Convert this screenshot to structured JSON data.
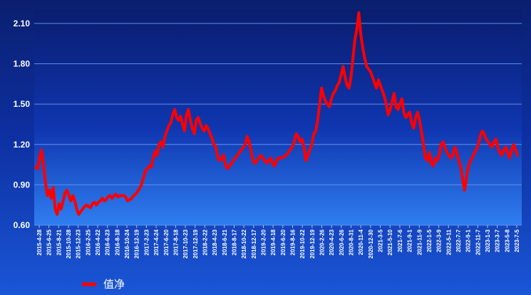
{
  "chart_data": {
    "type": "line",
    "title": "",
    "xlabel": "",
    "ylabel": "",
    "ylim": [
      0.6,
      2.2
    ],
    "yticks": [
      0.6,
      0.9,
      1.2,
      1.5,
      1.8,
      2.1
    ],
    "ytick_labels": [
      "0.60",
      "0.90",
      "1.20",
      "1.50",
      "1.80",
      "2.10"
    ],
    "grid": true,
    "legend_position": "bottom-left",
    "xtick_labels": [
      "2015-4-28",
      "2015-6-25",
      "2015-8-21",
      "2015-10-28",
      "2015-12-23",
      "2016-2-25",
      "2016-4-22",
      "2016-6-23",
      "2016-8-18",
      "2016-10-24",
      "2016-12-19",
      "2017-2-23",
      "2017-4-24",
      "2017-6-20",
      "2017-8-18",
      "2017-10-23",
      "2017-12-19",
      "2018-2-22",
      "2018-4-23",
      "2018-6-21",
      "2018-8-17",
      "2018-10-22",
      "2018-12-17",
      "2019-2-20",
      "2019-4-18",
      "2019-6-20",
      "2019-8-16",
      "2019-10-22",
      "2019-12-19",
      "2020-2-26",
      "2020-4-23",
      "2020-6-26",
      "2020-8-31",
      "2020-11-4",
      "2020-12-30",
      "2021-3-5",
      "2021-5-10",
      "2021-7-6",
      "2021-9-1",
      "2021-11-9",
      "2022-1-5",
      "2022-3-9",
      "2022-5-11",
      "2022-7-7",
      "2022-9-1",
      "2022-11-7",
      "2023-1-3",
      "2023-3-7",
      "2023-5-8",
      "2023-7-5"
    ],
    "series": [
      {
        "name": "值净",
        "color": "#ff0000",
        "values": [
          1.03,
          1.02,
          1.1,
          1.16,
          1.05,
          0.92,
          0.82,
          0.86,
          0.8,
          0.88,
          0.72,
          0.68,
          0.76,
          0.72,
          0.78,
          0.84,
          0.86,
          0.82,
          0.78,
          0.82,
          0.78,
          0.72,
          0.68,
          0.7,
          0.72,
          0.74,
          0.75,
          0.74,
          0.73,
          0.76,
          0.77,
          0.75,
          0.77,
          0.78,
          0.8,
          0.78,
          0.79,
          0.81,
          0.82,
          0.8,
          0.82,
          0.83,
          0.81,
          0.82,
          0.82,
          0.82,
          0.81,
          0.78,
          0.79,
          0.8,
          0.82,
          0.83,
          0.85,
          0.87,
          0.9,
          0.95,
          1.0,
          1.02,
          1.04,
          1.03,
          1.1,
          1.15,
          1.12,
          1.2,
          1.22,
          1.18,
          1.26,
          1.3,
          1.34,
          1.36,
          1.42,
          1.46,
          1.4,
          1.38,
          1.41,
          1.35,
          1.3,
          1.42,
          1.46,
          1.38,
          1.32,
          1.28,
          1.38,
          1.4,
          1.36,
          1.32,
          1.3,
          1.34,
          1.32,
          1.28,
          1.25,
          1.2,
          1.18,
          1.1,
          1.08,
          1.1,
          1.12,
          1.04,
          1.02,
          1.04,
          1.06,
          1.08,
          1.1,
          1.12,
          1.14,
          1.16,
          1.18,
          1.2,
          1.26,
          1.22,
          1.15,
          1.08,
          1.06,
          1.08,
          1.1,
          1.12,
          1.1,
          1.08,
          1.06,
          1.08,
          1.1,
          1.06,
          1.04,
          1.08,
          1.1,
          1.1,
          1.1,
          1.11,
          1.12,
          1.14,
          1.16,
          1.18,
          1.22,
          1.28,
          1.26,
          1.22,
          1.24,
          1.18,
          1.08,
          1.12,
          1.16,
          1.2,
          1.28,
          1.3,
          1.38,
          1.5,
          1.62,
          1.56,
          1.52,
          1.5,
          1.48,
          1.54,
          1.58,
          1.6,
          1.64,
          1.66,
          1.72,
          1.78,
          1.7,
          1.64,
          1.62,
          1.7,
          1.84,
          1.98,
          2.06,
          2.18,
          2.02,
          1.92,
          1.84,
          1.78,
          1.76,
          1.74,
          1.7,
          1.66,
          1.62,
          1.68,
          1.64,
          1.6,
          1.56,
          1.5,
          1.42,
          1.46,
          1.52,
          1.58,
          1.48,
          1.46,
          1.5,
          1.54,
          1.44,
          1.4,
          1.42,
          1.44,
          1.36,
          1.32,
          1.4,
          1.44,
          1.38,
          1.3,
          1.2,
          1.1,
          1.08,
          1.14,
          1.06,
          1.04,
          1.1,
          1.08,
          1.12,
          1.2,
          1.22,
          1.18,
          1.14,
          1.12,
          1.1,
          1.12,
          1.18,
          1.14,
          1.08,
          1.04,
          0.94,
          0.86,
          0.96,
          1.04,
          1.08,
          1.1,
          1.14,
          1.16,
          1.2,
          1.26,
          1.3,
          1.28,
          1.24,
          1.22,
          1.2,
          1.18,
          1.22,
          1.24,
          1.18,
          1.14,
          1.12,
          1.16,
          1.18,
          1.14,
          1.1,
          1.16,
          1.2,
          1.16,
          1.12
        ]
      }
    ]
  },
  "legend": {
    "label": "值净",
    "color": "#ff0000"
  }
}
